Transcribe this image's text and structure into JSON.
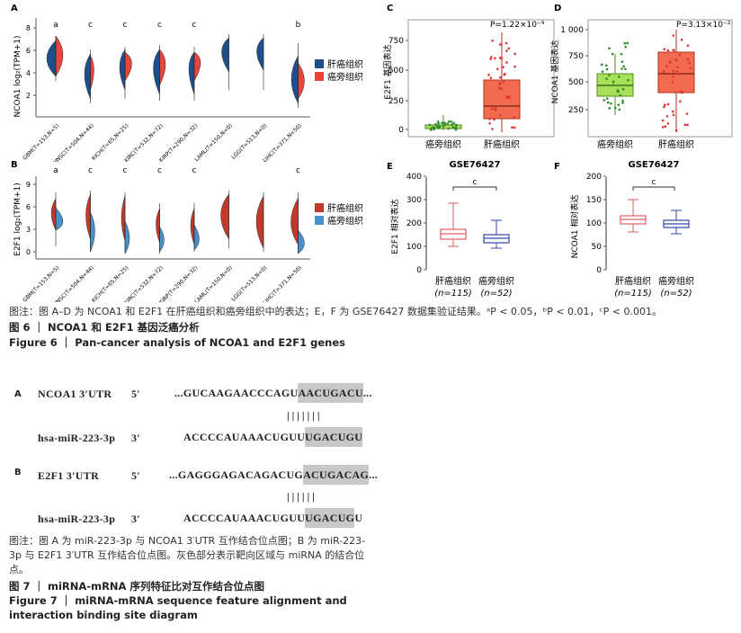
{
  "figure6": {
    "panel_a": {
      "label": "A",
      "ylabel": "NCOA1 log₂(TPM+1)",
      "y_ticks": [
        "2",
        "4",
        "6",
        "8"
      ],
      "categories": [
        "GBM(T=153,N=5)",
        "HNSC(T=504,N=44)",
        "KICH(T=65,N=25)",
        "KIRC(T=532,N=72)",
        "KIRP(T=290,N=32)",
        "LAML(T=150,N=0)",
        "LGG(T=513,N=0)",
        "LIHC(T=371,N=50)"
      ],
      "sig_letters": [
        "a",
        "c",
        "c",
        "c",
        "c",
        "",
        "",
        "b"
      ],
      "legend": [
        "肝癌组织",
        "癌旁组织"
      ]
    },
    "panel_b": {
      "label": "B",
      "ylabel": "E2F1 log₂(TPM+1)",
      "y_ticks": [
        "0",
        "3",
        "6",
        "9"
      ],
      "categories": [
        "GBM(T=153,N=5)",
        "HNSC(T=504,N=44)",
        "KICH(T=65,N=25)",
        "KIRC(T=532,N=72)",
        "KIRP(T=290,N=32)",
        "LAML(T=150,N=0)",
        "LGG(T=513,N=0)",
        "LIHC(T=371,N=50)"
      ],
      "sig_letters": [
        "a",
        "c",
        "c",
        "c",
        "c",
        "",
        "",
        "c"
      ],
      "legend": [
        "肝癌组织",
        "癌旁组织"
      ]
    },
    "panel_c": {
      "label": "C",
      "ylabel": "E2F1 基因表达",
      "pvalue": "P=1.22×10⁻⁹",
      "y_ticks": [
        "0",
        "250",
        "500",
        "750"
      ],
      "categories": [
        "癌旁组织",
        "肝癌组织"
      ]
    },
    "panel_d": {
      "label": "D",
      "ylabel": "NCOA1 基因表达",
      "pvalue": "P=3.13×10⁻²",
      "y_ticks": [
        "250",
        "500",
        "750",
        "1 000"
      ],
      "categories": [
        "癌旁组织",
        "肝癌组织"
      ]
    },
    "panel_e": {
      "label": "E",
      "title": "GSE76427",
      "ylabel": "E2F1 相对表达",
      "y_ticks": [
        "0",
        "100",
        "200",
        "300",
        "400"
      ],
      "sig": "c",
      "categories": [
        "肝癌组织",
        "癌旁组织"
      ],
      "ns": [
        "(n=115)",
        "(n=52)"
      ]
    },
    "panel_f": {
      "label": "F",
      "title": "GSE76427",
      "ylabel": "NCOA1 相对表达",
      "y_ticks": [
        "0",
        "50",
        "100",
        "150",
        "200"
      ],
      "sig": "c",
      "categories": [
        "肝癌组织",
        "癌旁组织"
      ],
      "ns": [
        "(n=115)",
        "(n=52)"
      ]
    },
    "caption": "图注：图 A–D 为 NCOA1 和 E2F1 在肝癌组织和癌旁组织中的表达；E，F 为 GSE76427 数据集验证结果。ᵃP < 0.05，ᵇP < 0.01，ᶜP < 0.001。",
    "title_cn": "图 6 ｜ NCOA1 和 E2F1 基因泛癌分析",
    "title_en": "Figure 6 ｜ Pan-cancer analysis of NCOA1 and E2F1 genes"
  },
  "figure7": {
    "a_label": "A",
    "a_gene": "NCOA1  3′UTR",
    "a_five": "5′",
    "a_seq_pre": "...GUCAAGAACCCAGU",
    "a_seq_hl": "AACUGACU",
    "a_seq_post": "...",
    "a_bars": "| | | | | | |",
    "a_mir": "hsa-miR-223-3p",
    "a_three": "3′",
    "a_mir_pre": "ACCCCAUAAACUGUU",
    "a_mir_hl": "UGACUGU",
    "b_label": "B",
    "b_gene": "E2F1  3′UTR",
    "b_five": "5′",
    "b_seq_pre": "...GAGGGAGACAGACUG",
    "b_seq_hl": "ACUGACAG",
    "b_seq_post": "...",
    "b_bars": "| | | | | |",
    "b_mir": "hsa-miR-223-3p",
    "b_three": "3′",
    "b_mir_pre": "ACCCCAUAAACUGUU",
    "b_mir_hl": "UGACUG",
    "b_mir_post": "U",
    "caption": "图注：图 A 为 miR-223-3p 与 NCOA1 3′UTR 互作结合位点图；B 为 miR-223-3p 与 E2F1 3′UTR 互作结合位点图。灰色部分表示靶向区域与 miRNA 的结合位点。",
    "title_cn": "图 7 ｜ miRNA-mRNA 序列特征比对互作结合位点图",
    "title_en": "Figure 7 ｜ miRNA-mRNA sequence feature alignment and interaction binding site diagram"
  },
  "colors": {
    "tumor": "#1f4e8c",
    "normal": "#e8453c",
    "tumor_b": "#c0392b",
    "normal_b": "#4a90c8",
    "green": "#a8e05a",
    "orange": "#f26b4f",
    "boxred": "#e06060",
    "boxblue": "#3344aa"
  }
}
